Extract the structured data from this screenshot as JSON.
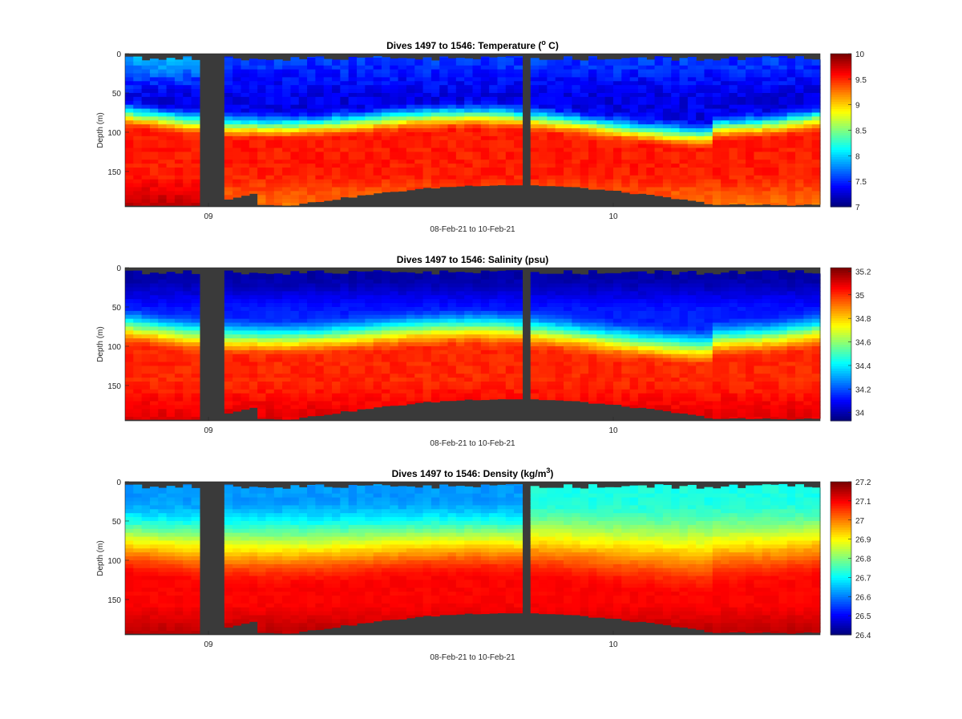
{
  "figure": {
    "background": "#ffffff",
    "no_data_color": "#3a3a3a",
    "colormap": "jet"
  },
  "chart_data": [
    {
      "type": "heatmap",
      "variable": "temperature",
      "title_main": "Dives 1497 to 1546: Temperature (",
      "title_sup": "o",
      "title_end": " C)",
      "xlabel": "08-Feb-21 to 10-Feb-21",
      "ylabel": "Depth (m)",
      "x_ticks": [
        "09",
        "10"
      ],
      "y_ticks": [
        "0",
        "50",
        "100",
        "150"
      ],
      "ylim": [
        0,
        195
      ],
      "colorbar": {
        "range": [
          7,
          10
        ],
        "ticks": [
          "7",
          "7.5",
          "8",
          "8.5",
          "9",
          "9.5",
          "10"
        ]
      },
      "profile": {
        "surface": 8.5,
        "d25": 8.0,
        "d60": 7.9,
        "d90": 8.7,
        "d110": 9.55,
        "d140": 9.45,
        "d190": 9.2,
        "notes": "cold surface water (7-8 C) over warm layer (9.3-9.7 C) below ~95 m"
      }
    },
    {
      "type": "heatmap",
      "variable": "salinity",
      "title_main": "Dives 1497 to 1546: Salinity (psu)",
      "title_sup": "",
      "title_end": "",
      "xlabel": "08-Feb-21 to 10-Feb-21",
      "ylabel": "Depth (m)",
      "x_ticks": [
        "09",
        "10"
      ],
      "y_ticks": [
        "0",
        "50",
        "100",
        "150"
      ],
      "ylim": [
        0,
        195
      ],
      "colorbar": {
        "range": [
          33.93,
          35.23
        ],
        "ticks": [
          "34",
          "34.2",
          "34.4",
          "34.6",
          "34.8",
          "35",
          "35.2"
        ]
      },
      "profile": {
        "surface": 34.0,
        "d40": 34.2,
        "d80": 34.6,
        "d100": 34.9,
        "d140": 35.05,
        "d190": 35.1,
        "notes": "fresh surface water (~34.0 psu) over saline layer (~35.0 psu) below ~100 m"
      }
    },
    {
      "type": "heatmap",
      "variable": "density",
      "title_main": "Dives 1497 to 1546: Density (kg/m",
      "title_sup": "3",
      "title_end": ")",
      "xlabel": "08-Feb-21 to 10-Feb-21",
      "ylabel": "Depth (m)",
      "x_ticks": [
        "09",
        "10"
      ],
      "y_ticks": [
        "0",
        "50",
        "100",
        "150"
      ],
      "ylim": [
        0,
        195
      ],
      "colorbar": {
        "range": [
          26.4,
          27.2
        ],
        "ticks": [
          "26.4",
          "26.5",
          "26.6",
          "26.7",
          "26.8",
          "26.9",
          "27",
          "27.1",
          "27.2"
        ]
      },
      "profile": {
        "surface": 26.6,
        "d50": 26.75,
        "d90": 26.92,
        "d120": 27.05,
        "d180": 27.15,
        "notes": "density increases with depth from ~26.6 at surface to ~27.15 near bottom"
      }
    }
  ]
}
